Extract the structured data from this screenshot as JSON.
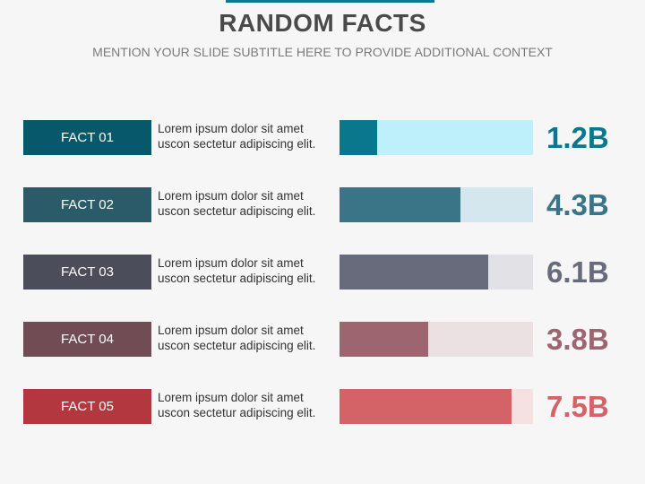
{
  "title": "RANDOM FACTS",
  "subtitle": "MENTION YOUR SLIDE SUBTITLE HERE TO PROVIDE ADDITIONAL CONTEXT",
  "colors": {
    "accent": "#0a7a8f",
    "background": "#f6f6f6"
  },
  "facts": [
    {
      "label": "FACT 01",
      "text_line1": "Lorem ipsum dolor sit amet",
      "text_line2": "uscon sectetur adipiscing elit.",
      "value": "1.2B",
      "fill_fraction": 0.195,
      "label_color": "#07586a",
      "fill_color": "#0b778e",
      "track_color": "#bdf0fb",
      "value_color": "#0b778e"
    },
    {
      "label": "FACT 02",
      "text_line1": "Lorem ipsum dolor sit amet",
      "text_line2": "uscon sectetur adipiscing elit.",
      "value": "4.3B",
      "fill_fraction": 0.625,
      "label_color": "#2b5a68",
      "fill_color": "#3a7487",
      "track_color": "#d4e6ee",
      "value_color": "#3a7487"
    },
    {
      "label": "FACT 03",
      "text_line1": "Lorem ipsum dolor sit amet",
      "text_line2": "uscon sectetur adipiscing elit.",
      "value": "6.1B",
      "fill_fraction": 0.77,
      "label_color": "#4b4d5a",
      "fill_color": "#686b7b",
      "track_color": "#e1e1e6",
      "value_color": "#686b7b"
    },
    {
      "label": "FACT 04",
      "text_line1": "Lorem ipsum dolor sit amet",
      "text_line2": "uscon sectetur adipiscing elit.",
      "value": "3.8B",
      "fill_fraction": 0.46,
      "label_color": "#724c55",
      "fill_color": "#9c6570",
      "track_color": "#ebe0e2",
      "value_color": "#9c6570"
    },
    {
      "label": "FACT 05",
      "text_line1": "Lorem ipsum dolor sit amet",
      "text_line2": "uscon sectetur adipiscing elit.",
      "value": "7.5B",
      "fill_fraction": 0.89,
      "label_color": "#b3373e",
      "fill_color": "#d36367",
      "track_color": "#f6e1e2",
      "value_color": "#d36367"
    }
  ]
}
